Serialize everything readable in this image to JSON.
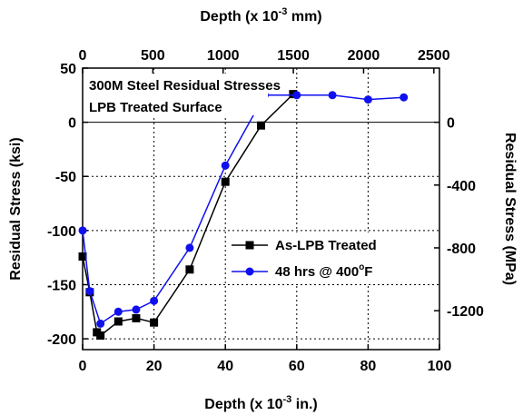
{
  "chart_data": {
    "type": "line",
    "title_lines": [
      "300M Steel Residual Stresses",
      "LPB Treated Surface"
    ],
    "x_bottom": {
      "label_parts": [
        "Depth (x 10",
        "-3",
        " in.)"
      ],
      "range": [
        0,
        100
      ],
      "ticks": [
        "0",
        "20",
        "40",
        "60",
        "80",
        "100"
      ]
    },
    "x_top": {
      "label_parts": [
        "Depth (x 10",
        "-3",
        " mm)"
      ],
      "range_mm": [
        0,
        2540
      ],
      "ticks": [
        "0",
        "500",
        "1000",
        "1500",
        "2000",
        "2500"
      ]
    },
    "y_left": {
      "label": "Residual Stress (ksi)",
      "range": [
        -210,
        50
      ],
      "ticks": [
        "50",
        "0",
        "-50",
        "-100",
        "-150",
        "-200"
      ]
    },
    "y_right": {
      "label": "Residual Stress (MPa)",
      "ticks": [
        "0",
        "-400",
        "-800",
        "-1200"
      ]
    },
    "grid": true,
    "legend_position": "right-middle",
    "series": [
      {
        "name": "As-LPB Treated",
        "color": "#000000",
        "marker": "square",
        "x": [
          0,
          2,
          4,
          5,
          10,
          15,
          20,
          30,
          40,
          50,
          59
        ],
        "y": [
          -124,
          -157,
          -194,
          -197,
          -184,
          -181,
          -185,
          -136,
          -55,
          -3,
          26
        ]
      },
      {
        "name_parts": [
          "48 hrs @ 400",
          "o",
          "F"
        ],
        "color": "#1010ee",
        "marker": "circle",
        "x": [
          0,
          2,
          5,
          10,
          15,
          20,
          30,
          40,
          51,
          60,
          70,
          80,
          90
        ],
        "y": [
          -100,
          -156,
          -186,
          -175,
          -173,
          -165,
          -116,
          -40,
          25,
          25,
          25,
          21,
          23
        ]
      }
    ]
  }
}
